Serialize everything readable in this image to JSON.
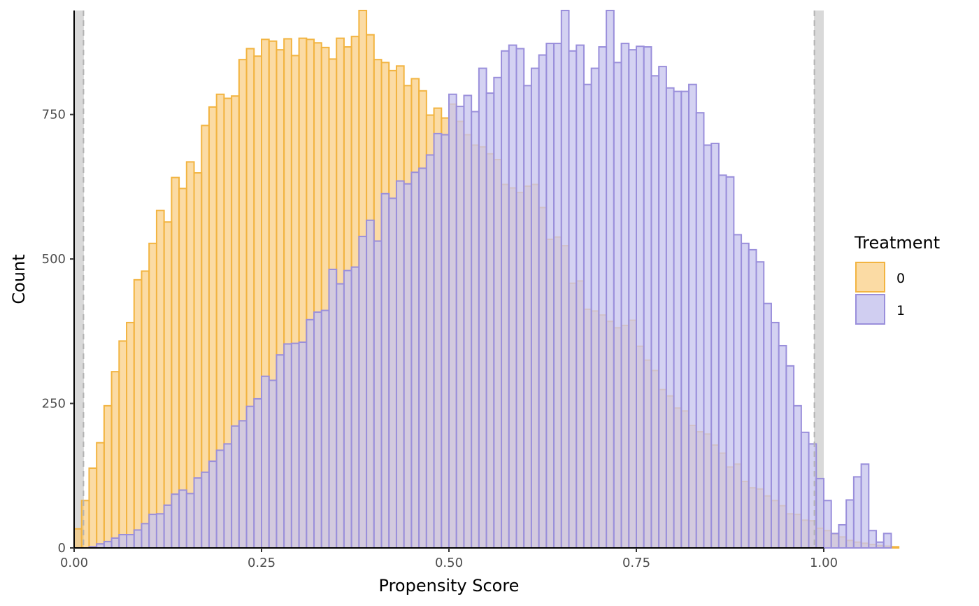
{
  "chart_data": {
    "type": "bar",
    "subtype": "overlaid-histogram",
    "title": "",
    "xlabel": "Propensity Score",
    "ylabel": "Count",
    "xlim": [
      0,
      1
    ],
    "ylim": [
      0,
      930
    ],
    "x_ticks": [
      0,
      0.25,
      0.5,
      0.75,
      1
    ],
    "x_tick_labels": [
      "0.00",
      "0.25",
      "0.50",
      "0.75",
      "1.00"
    ],
    "y_ticks": [
      0,
      250,
      500,
      750
    ],
    "y_tick_labels": [
      "0",
      "250",
      "500",
      "750"
    ],
    "grid": false,
    "bin_width": 0.01,
    "bin_start": 0,
    "trim_lower": 0.0125,
    "trim_upper": 0.9875,
    "trim_band_color": "#d9d9d9",
    "trim_line_color": "#b3b3b3",
    "legend": {
      "title": "Treatment",
      "placement": "right"
    },
    "series": [
      {
        "name": "0",
        "fill": "#f9c56c",
        "stroke": "#f2b441",
        "values": [
          33,
          82,
          138,
          182,
          246,
          305,
          358,
          390,
          464,
          479,
          527,
          584,
          564,
          641,
          622,
          668,
          649,
          731,
          763,
          785,
          778,
          782,
          845,
          864,
          851,
          880,
          877,
          862,
          881,
          852,
          882,
          880,
          874,
          866,
          846,
          882,
          867,
          885,
          930,
          888,
          845,
          840,
          826,
          834,
          800,
          812,
          791,
          749,
          761,
          744,
          768,
          738,
          715,
          697,
          694,
          682,
          672,
          629,
          623,
          615,
          626,
          629,
          589,
          534,
          538,
          523,
          458,
          462,
          413,
          410,
          403,
          392,
          381,
          385,
          394,
          349,
          325,
          307,
          274,
          263,
          242,
          237,
          212,
          201,
          197,
          178,
          164,
          140,
          145,
          115,
          104,
          102,
          90,
          82,
          73,
          59,
          58,
          48,
          47,
          34,
          30,
          24,
          19,
          13,
          10,
          8,
          6,
          4,
          3,
          2
        ]
      },
      {
        "name": "1",
        "fill": "#c8c5ee",
        "stroke": "#9a8fdb",
        "values": [
          0,
          0,
          2,
          7,
          11,
          17,
          23,
          23,
          31,
          42,
          58,
          59,
          74,
          93,
          100,
          94,
          121,
          131,
          150,
          169,
          180,
          211,
          220,
          245,
          258,
          297,
          290,
          334,
          353,
          354,
          356,
          395,
          408,
          411,
          482,
          457,
          480,
          486,
          539,
          567,
          531,
          613,
          605,
          635,
          630,
          650,
          657,
          680,
          717,
          715,
          702,
          717,
          693,
          681,
          677,
          623,
          615,
          626,
          629,
          589,
          523,
          538,
          527,
          458,
          462,
          413,
          410,
          403,
          392,
          381,
          385,
          394,
          349,
          330,
          310,
          275,
          259,
          242,
          230,
          215,
          185,
          180,
          165,
          140,
          145,
          120,
          115,
          100,
          85,
          74,
          57,
          55,
          40,
          30,
          25,
          18,
          10,
          9,
          5,
          3,
          2,
          15,
          40,
          83,
          123,
          145,
          30,
          10,
          25,
          0
        ]
      }
    ],
    "series1_upper": [
      0,
      0,
      0,
      0,
      0,
      0,
      0,
      0,
      0,
      0,
      0,
      0,
      0,
      0,
      0,
      0,
      0,
      0,
      0,
      0,
      0,
      0,
      0,
      0,
      0,
      0,
      0,
      0,
      0,
      0,
      0,
      0,
      0,
      0,
      0,
      0,
      0,
      0,
      0,
      0,
      0,
      0,
      0,
      0,
      0,
      0,
      0,
      0,
      0,
      0,
      785,
      764,
      783,
      755,
      830,
      787,
      814,
      860,
      870,
      864,
      800,
      830,
      853,
      873,
      873,
      930,
      860,
      870,
      802,
      830,
      867,
      930,
      840,
      873,
      862,
      868,
      867,
      817,
      833,
      796,
      790,
      790,
      802,
      753,
      697,
      700,
      645,
      642,
      542,
      527,
      516,
      495,
      423,
      390,
      350,
      315,
      246,
      200,
      180,
      120,
      82,
      25,
      8,
      0,
      0,
      0,
      0,
      0,
      0,
      0
    ]
  }
}
